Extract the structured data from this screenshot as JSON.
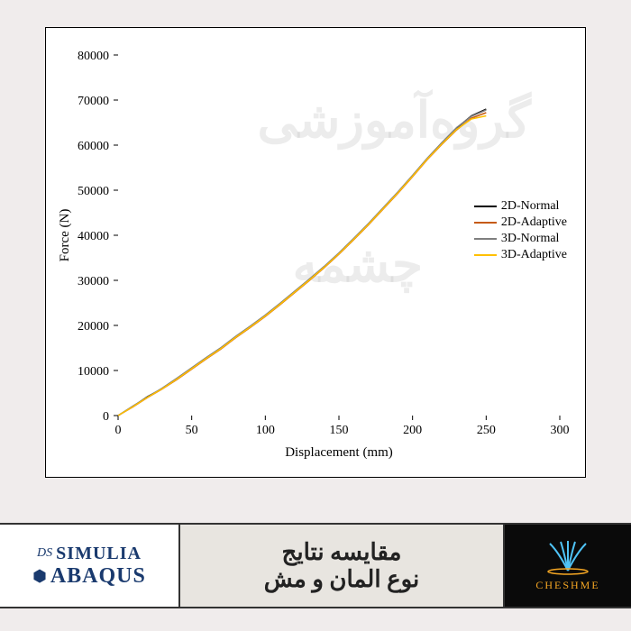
{
  "chart": {
    "type": "line",
    "xlabel": "Displacement (mm)",
    "ylabel": "Force (N)",
    "label_fontsize": 15,
    "tick_fontsize": 14,
    "xlim": [
      0,
      300
    ],
    "ylim": [
      0,
      80000
    ],
    "xtick_step": 50,
    "ytick_step": 10000,
    "xticks": [
      0,
      50,
      100,
      150,
      200,
      250,
      300
    ],
    "yticks": [
      0,
      10000,
      20000,
      30000,
      40000,
      50000,
      60000,
      70000,
      80000
    ],
    "background_color": "#ffffff",
    "border_color": "#000000",
    "line_width": 1.5,
    "series": [
      {
        "name": "2D-Normal",
        "color": "#000000",
        "data": [
          [
            0,
            0
          ],
          [
            10,
            2000
          ],
          [
            20,
            4200
          ],
          [
            30,
            6000
          ],
          [
            40,
            8200
          ],
          [
            50,
            10500
          ],
          [
            60,
            12800
          ],
          [
            70,
            15000
          ],
          [
            80,
            17500
          ],
          [
            90,
            19800
          ],
          [
            100,
            22200
          ],
          [
            110,
            24800
          ],
          [
            120,
            27500
          ],
          [
            130,
            30200
          ],
          [
            140,
            33000
          ],
          [
            150,
            36000
          ],
          [
            160,
            39200
          ],
          [
            170,
            42500
          ],
          [
            180,
            46000
          ],
          [
            190,
            49500
          ],
          [
            200,
            53200
          ],
          [
            210,
            57000
          ],
          [
            220,
            60500
          ],
          [
            230,
            63800
          ],
          [
            240,
            66500
          ],
          [
            250,
            68000
          ]
        ]
      },
      {
        "name": "2D-Adaptive",
        "color": "#c55a11",
        "data": [
          [
            0,
            0
          ],
          [
            10,
            1900
          ],
          [
            20,
            4000
          ],
          [
            30,
            5900
          ],
          [
            40,
            8000
          ],
          [
            50,
            10300
          ],
          [
            60,
            12600
          ],
          [
            70,
            14800
          ],
          [
            80,
            17300
          ],
          [
            90,
            19600
          ],
          [
            100,
            22000
          ],
          [
            110,
            24600
          ],
          [
            120,
            27300
          ],
          [
            130,
            30000
          ],
          [
            140,
            32800
          ],
          [
            150,
            35800
          ],
          [
            160,
            39000
          ],
          [
            170,
            42300
          ],
          [
            180,
            45800
          ],
          [
            190,
            49300
          ],
          [
            200,
            53000
          ],
          [
            210,
            56800
          ],
          [
            220,
            60200
          ],
          [
            230,
            63400
          ],
          [
            240,
            66000
          ],
          [
            250,
            67200
          ]
        ]
      },
      {
        "name": "3D-Normal",
        "color": "#7f7f7f",
        "data": [
          [
            0,
            0
          ],
          [
            10,
            2100
          ],
          [
            20,
            4100
          ],
          [
            30,
            6100
          ],
          [
            40,
            8300
          ],
          [
            50,
            10600
          ],
          [
            60,
            12900
          ],
          [
            70,
            15100
          ],
          [
            80,
            17600
          ],
          [
            90,
            19900
          ],
          [
            100,
            22300
          ],
          [
            110,
            24900
          ],
          [
            120,
            27600
          ],
          [
            130,
            30300
          ],
          [
            140,
            33100
          ],
          [
            150,
            36100
          ],
          [
            160,
            39300
          ],
          [
            170,
            42600
          ],
          [
            180,
            46100
          ],
          [
            190,
            49600
          ],
          [
            200,
            53300
          ],
          [
            210,
            57100
          ],
          [
            220,
            60600
          ],
          [
            230,
            63900
          ],
          [
            240,
            66400
          ],
          [
            250,
            67800
          ]
        ]
      },
      {
        "name": "3D-Adaptive",
        "color": "#ffc000",
        "data": [
          [
            0,
            0
          ],
          [
            10,
            1950
          ],
          [
            20,
            4050
          ],
          [
            30,
            5950
          ],
          [
            40,
            8100
          ],
          [
            50,
            10400
          ],
          [
            60,
            12700
          ],
          [
            70,
            14900
          ],
          [
            80,
            17400
          ],
          [
            90,
            19700
          ],
          [
            100,
            22100
          ],
          [
            110,
            24700
          ],
          [
            120,
            27400
          ],
          [
            130,
            30100
          ],
          [
            140,
            32900
          ],
          [
            150,
            35900
          ],
          [
            160,
            39100
          ],
          [
            170,
            42400
          ],
          [
            180,
            45900
          ],
          [
            190,
            49400
          ],
          [
            200,
            53100
          ],
          [
            210,
            56900
          ],
          [
            220,
            60300
          ],
          [
            230,
            63500
          ],
          [
            240,
            65800
          ],
          [
            250,
            66500
          ]
        ]
      }
    ]
  },
  "watermark": {
    "line1": "گروه‌آموزشی",
    "line2": "چشمه",
    "color": "rgba(180,180,180,0.25)",
    "fontsize": 55
  },
  "footer": {
    "simulia_ds": "DS",
    "simulia": "SIMULIA",
    "abaqus": "ABAQUS",
    "title_line1": "مقایسه نتایج",
    "title_line2": "نوع المان و مش",
    "cheshme": "CHESHME"
  }
}
